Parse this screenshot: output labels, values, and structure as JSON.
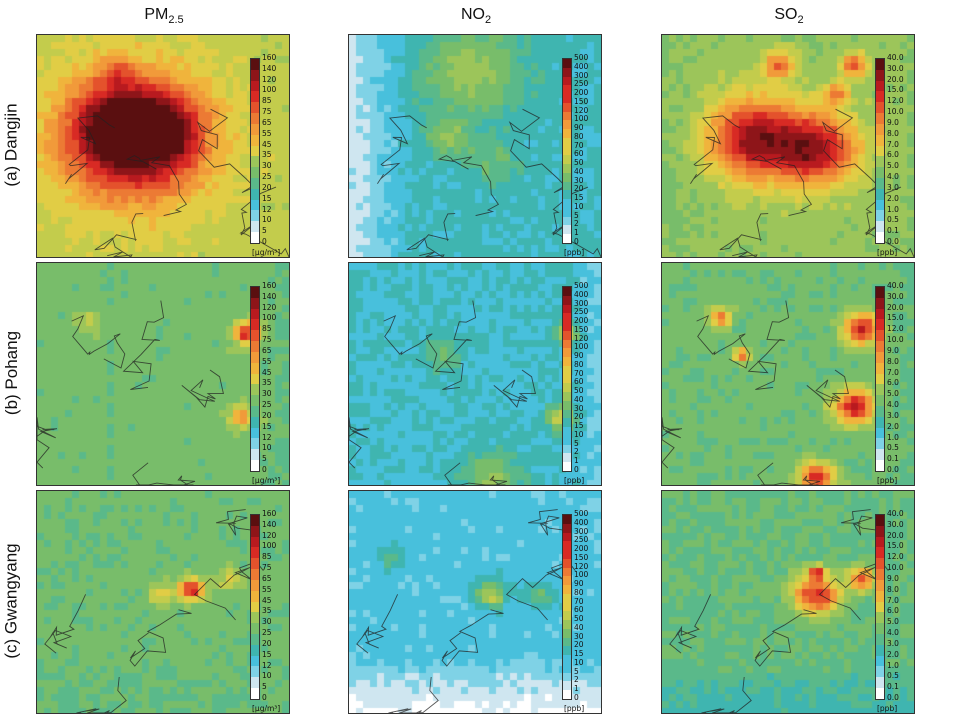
{
  "columns": [
    {
      "key": "pm",
      "label_main": "PM",
      "label_sub": "2.5"
    },
    {
      "key": "no2",
      "label_main": "NO",
      "label_sub": "2"
    },
    {
      "key": "so2",
      "label_main": "SO",
      "label_sub": "2"
    }
  ],
  "rows": [
    {
      "key": "dangjin",
      "label": "(a) Dangjin"
    },
    {
      "key": "pohang",
      "label": "(b) Pohang"
    },
    {
      "key": "gwangyang",
      "label": "(c) Gwangyang"
    }
  ],
  "colorbars": {
    "pm": {
      "unit": "[μg/m³]",
      "ticks": [
        "160",
        "140",
        "120",
        "100",
        "85",
        "75",
        "65",
        "55",
        "45",
        "35",
        "30",
        "25",
        "20",
        "15",
        "12",
        "10",
        "5",
        "0"
      ]
    },
    "no2": {
      "unit": "[ppb]",
      "ticks": [
        "500",
        "400",
        "300",
        "250",
        "200",
        "150",
        "120",
        "100",
        "90",
        "80",
        "70",
        "60",
        "50",
        "40",
        "30",
        "20",
        "15",
        "10",
        "5",
        "2",
        "1",
        "0"
      ]
    },
    "so2": {
      "unit": "[ppb]",
      "ticks": [
        "40.0",
        "30.0",
        "20.0",
        "15.0",
        "12.0",
        "10.0",
        "9.0",
        "8.0",
        "7.0",
        "6.0",
        "5.0",
        "4.0",
        "3.0",
        "2.0",
        "1.0",
        "0.5",
        "0.1",
        "0.0"
      ]
    }
  },
  "palette": [
    "#ffffff",
    "#cfe6f0",
    "#7fd2e6",
    "#48c0dc",
    "#3fb5b0",
    "#5ab98a",
    "#78bd6a",
    "#9cc55a",
    "#c3cc4c",
    "#e1cd45",
    "#f0b43c",
    "#f19a3a",
    "#ec7a34",
    "#e4522c",
    "#d82a24",
    "#b81a1f",
    "#8e1519",
    "#5a0f10"
  ],
  "fields": {
    "dangjin": {
      "pm": {
        "base": 0.46,
        "land": 0.0,
        "hot": [
          [
            0.37,
            0.45,
            0.3,
            0.85
          ],
          [
            0.32,
            0.4,
            0.18,
            0.6
          ],
          [
            0.5,
            0.42,
            0.14,
            0.45
          ],
          [
            0.3,
            0.15,
            0.06,
            0.25
          ]
        ]
      },
      "no2": {
        "base": 0.22,
        "land": 0.12,
        "hot": [
          [
            0.47,
            0.15,
            0.2,
            0.35
          ],
          [
            0.38,
            0.45,
            0.08,
            0.3
          ],
          [
            0.55,
            0.55,
            0.1,
            0.2
          ]
        ]
      },
      "so2": {
        "base": 0.4,
        "land": 0.05,
        "hot": [
          [
            0.35,
            0.45,
            0.18,
            0.95
          ],
          [
            0.6,
            0.5,
            0.16,
            0.9
          ],
          [
            0.45,
            0.12,
            0.06,
            0.6
          ],
          [
            0.75,
            0.12,
            0.05,
            0.7
          ],
          [
            0.68,
            0.25,
            0.05,
            0.5
          ]
        ]
      }
    },
    "pohang": {
      "pm": {
        "base": 0.35,
        "land": 0.08,
        "hot": [
          [
            0.82,
            0.3,
            0.05,
            0.95
          ],
          [
            0.8,
            0.68,
            0.05,
            0.55
          ],
          [
            0.2,
            0.25,
            0.05,
            0.2
          ]
        ]
      },
      "no2": {
        "base": 0.2,
        "land": 0.12,
        "hot": [
          [
            0.85,
            0.3,
            0.04,
            0.6
          ],
          [
            0.83,
            0.68,
            0.06,
            0.5
          ],
          [
            0.35,
            0.4,
            0.08,
            0.25
          ],
          [
            0.55,
            0.95,
            0.12,
            0.35
          ]
        ]
      },
      "so2": {
        "base": 0.34,
        "land": 0.06,
        "hot": [
          [
            0.78,
            0.28,
            0.07,
            0.95
          ],
          [
            0.75,
            0.63,
            0.08,
            0.95
          ],
          [
            0.6,
            0.95,
            0.07,
            0.85
          ],
          [
            0.22,
            0.23,
            0.04,
            0.75
          ],
          [
            0.3,
            0.4,
            0.03,
            0.7
          ]
        ]
      }
    },
    "gwangyang": {
      "pm": {
        "base": 0.34,
        "land": 0.02,
        "hot": [
          [
            0.6,
            0.43,
            0.05,
            0.9
          ],
          [
            0.48,
            0.45,
            0.05,
            0.35
          ],
          [
            0.75,
            0.38,
            0.05,
            0.3
          ]
        ]
      },
      "no2": {
        "base": 0.17,
        "land": 0.15,
        "hot": [
          [
            0.55,
            0.45,
            0.06,
            0.55
          ],
          [
            0.15,
            0.28,
            0.05,
            0.25
          ],
          [
            0.75,
            0.45,
            0.06,
            0.25
          ]
        ]
      },
      "so2": {
        "base": 0.32,
        "land": 0.08,
        "hot": [
          [
            0.6,
            0.45,
            0.09,
            0.95
          ],
          [
            0.78,
            0.38,
            0.05,
            0.8
          ],
          [
            0.6,
            0.35,
            0.03,
            0.7
          ]
        ]
      }
    }
  }
}
